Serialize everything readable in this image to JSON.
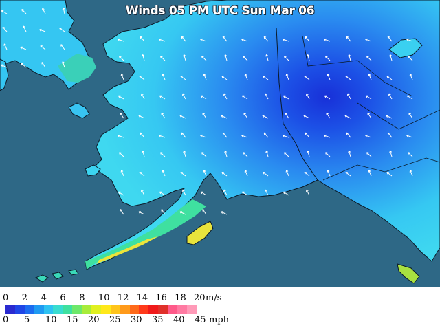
{
  "title": "Winds 05 PM UTC Sun Mar 06",
  "legend": {
    "ms_unit": "m/s",
    "mph_unit": "mph",
    "ms_ticks": [
      "0",
      "2",
      "4",
      "6",
      "8",
      "10",
      "12",
      "14",
      "16",
      "18",
      "20"
    ],
    "mph_ticks": [
      "0",
      "5",
      "10",
      "15",
      "20",
      "25",
      "30",
      "35",
      "40",
      "45"
    ],
    "colors": [
      "#2a2ad0",
      "#1f46e6",
      "#1c6cf0",
      "#1f9af2",
      "#2ec2f2",
      "#39dcd0",
      "#3fe0a0",
      "#6ee86a",
      "#a8ec3a",
      "#e0f020",
      "#ffe81a",
      "#ffc41a",
      "#ff9a1a",
      "#ff6a1a",
      "#ff3a1a",
      "#f01a1a",
      "#e0302a",
      "#ff5a8a",
      "#ff7aa2",
      "#ff9ab8"
    ]
  },
  "colors": {
    "ocean": "#2e6886",
    "land_light": "#3fd8f0",
    "land_mid": "#2aa4f0",
    "land_strong": "#1c50e6",
    "land_core": "#1830d8",
    "coast_green": "#4ce0b0",
    "coast_yellow": "#ece43a"
  }
}
